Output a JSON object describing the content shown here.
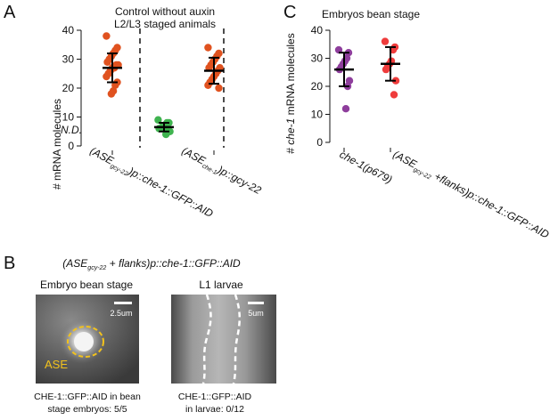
{
  "panels": {
    "A": {
      "letter": "A",
      "title_line1": "Control without auxin",
      "title_line2": "L2/L3 staged animals",
      "nd_text": "N.D.",
      "x_labels": [
        {
          "prefix": "(ASE",
          "sub": "gcy-22",
          "suffix": ")p::che-1::GFP::AID"
        },
        {
          "prefix": "(ASE",
          "sub": "che-1",
          "suffix": ")p::gcy-22"
        }
      ]
    },
    "B": {
      "letter": "B",
      "title_prefix": "(ASE",
      "title_sub": "gcy-22",
      "title_suffix": " + flanks)p::che-1::GFP::AID",
      "left_image": {
        "title": "Embryo bean stage",
        "scale_label": "2.5um",
        "ase_label": "ASE",
        "caption_line1": "CHE-1::GFP::AID in bean",
        "caption_line2": "stage embryos: 5/5"
      },
      "right_image": {
        "title": "L1 larvae",
        "scale_label": "5um",
        "caption_line1": "CHE-1::GFP::AID",
        "caption_line2": "in larvae: 0/12"
      }
    },
    "C": {
      "letter": "C",
      "title": "Embryos bean stage",
      "x_labels": [
        {
          "text": "che-1(p679)"
        },
        {
          "prefix": "(ASE",
          "sub": "gcy-22",
          "suffix": " +flanks)p::che-1::GFP::AID"
        }
      ]
    }
  },
  "colors": {
    "orange": "#e0521f",
    "green": "#3fb34f",
    "purple": "#8e3e9c",
    "red": "#ef3c3c",
    "ase_outline": "#f2c21c",
    "bar": "#000000"
  },
  "chart_data": [
    {
      "panel": "A",
      "type": "scatter",
      "ylabel": "# mRNA molecules",
      "ylim": [
        0,
        40
      ],
      "yticks": [
        0,
        10,
        20,
        30,
        40
      ],
      "categories": [
        "(ASEgcy-22)p::che-1::GFP::AID",
        "(ASEche-1)p::gcy-22"
      ],
      "dividers": [
        "dashed"
      ],
      "groups": [
        {
          "group": 0,
          "color": "orange",
          "values": [
            38,
            34,
            33,
            32,
            31,
            30,
            29,
            28,
            28,
            27,
            27,
            26,
            25,
            24,
            22,
            21,
            19,
            18
          ],
          "mean": 27,
          "sd": 5
        },
        {
          "group": 1,
          "color": "green",
          "values": [
            9,
            8,
            8,
            7,
            7,
            6,
            6,
            5,
            5,
            4
          ],
          "mean": 6.5,
          "sd": 1.5
        },
        {
          "group": 1,
          "color": "orange",
          "values": [
            34,
            32,
            31,
            30,
            29,
            28,
            27,
            27,
            26,
            25,
            24,
            23,
            22,
            21,
            20
          ],
          "mean": 26,
          "sd": 4.5
        }
      ]
    },
    {
      "panel": "C",
      "type": "scatter",
      "ylabel": "# che-1 mRNA molecules",
      "ylim": [
        0,
        40
      ],
      "yticks": [
        0,
        10,
        20,
        30,
        40
      ],
      "categories": [
        "che-1(p679)",
        "(ASEgcy-22 +flanks)p::che-1::GFP::AID"
      ],
      "groups": [
        {
          "group": 0,
          "color": "purple",
          "values": [
            33,
            32,
            30,
            29,
            28,
            27,
            26,
            22,
            20,
            12
          ],
          "mean": 26,
          "sd": 6
        },
        {
          "group": 1,
          "color": "red",
          "values": [
            36,
            34,
            33,
            29,
            28,
            27,
            26,
            22,
            17
          ],
          "mean": 28,
          "sd": 6
        }
      ]
    }
  ]
}
